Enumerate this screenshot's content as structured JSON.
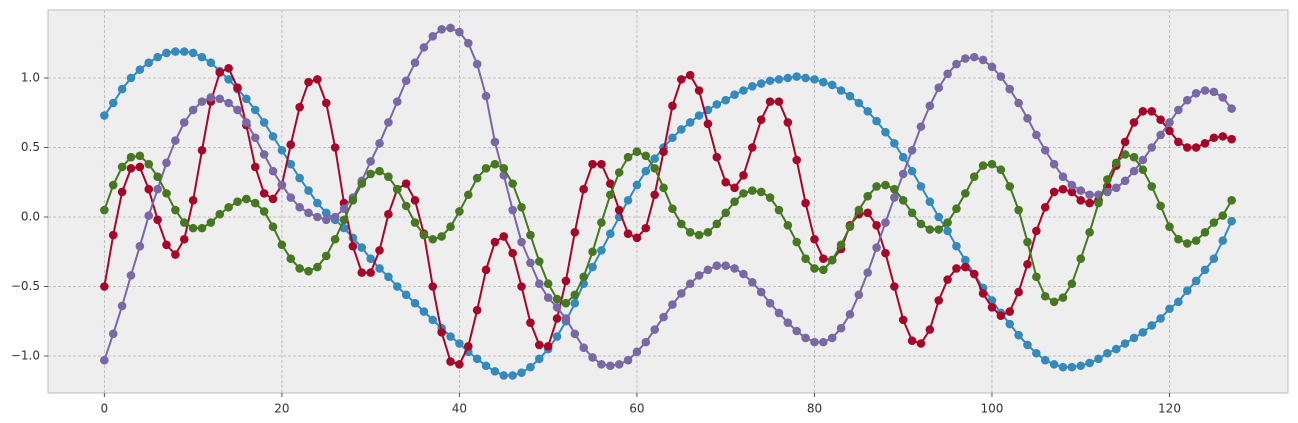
{
  "chart_data": {
    "type": "line",
    "x": [
      0,
      1,
      2,
      3,
      4,
      5,
      6,
      7,
      8,
      9,
      10,
      11,
      12,
      13,
      14,
      15,
      16,
      17,
      18,
      19,
      20,
      21,
      22,
      23,
      24,
      25,
      26,
      27,
      28,
      29,
      30,
      31,
      32,
      33,
      34,
      35,
      36,
      37,
      38,
      39,
      40,
      41,
      42,
      43,
      44,
      45,
      46,
      47,
      48,
      49,
      50,
      51,
      52,
      53,
      54,
      55,
      56,
      57,
      58,
      59,
      60,
      61,
      62,
      63,
      64,
      65,
      66,
      67,
      68,
      69,
      70,
      71,
      72,
      73,
      74,
      75,
      76,
      77,
      78,
      79,
      80,
      81,
      82,
      83,
      84,
      85,
      86,
      87,
      88,
      89,
      90,
      91,
      92,
      93,
      94,
      95,
      96,
      97,
      98,
      99,
      100,
      101,
      102,
      103,
      104,
      105,
      106,
      107,
      108,
      109,
      110,
      111,
      112,
      113,
      114,
      115,
      116,
      117,
      118,
      119,
      120,
      121,
      122,
      123,
      124,
      125,
      126,
      127
    ],
    "series": [
      {
        "color": "#348ABD",
        "values": [
          0.73,
          0.82,
          0.92,
          1.0,
          1.06,
          1.11,
          1.15,
          1.18,
          1.19,
          1.19,
          1.18,
          1.15,
          1.11,
          1.05,
          0.99,
          0.92,
          0.85,
          0.77,
          0.68,
          0.58,
          0.48,
          0.38,
          0.28,
          0.19,
          0.1,
          0.03,
          -0.02,
          -0.08,
          -0.15,
          -0.22,
          -0.3,
          -0.37,
          -0.43,
          -0.5,
          -0.56,
          -0.62,
          -0.68,
          -0.74,
          -0.8,
          -0.86,
          -0.91,
          -0.97,
          -1.02,
          -1.07,
          -1.11,
          -1.14,
          -1.14,
          -1.12,
          -1.08,
          -1.02,
          -0.95,
          -0.86,
          -0.75,
          -0.62,
          -0.48,
          -0.36,
          -0.24,
          -0.12,
          0.0,
          0.12,
          0.23,
          0.33,
          0.42,
          0.5,
          0.57,
          0.63,
          0.68,
          0.73,
          0.77,
          0.81,
          0.84,
          0.88,
          0.91,
          0.94,
          0.96,
          0.98,
          0.99,
          1.0,
          1.01,
          1.0,
          0.99,
          0.97,
          0.95,
          0.91,
          0.87,
          0.82,
          0.76,
          0.69,
          0.61,
          0.53,
          0.43,
          0.33,
          0.22,
          0.11,
          0.0,
          -0.1,
          -0.21,
          -0.31,
          -0.41,
          -0.51,
          -0.6,
          -0.69,
          -0.77,
          -0.85,
          -0.92,
          -0.98,
          -1.03,
          -1.06,
          -1.08,
          -1.08,
          -1.07,
          -1.05,
          -1.02,
          -0.98,
          -0.95,
          -0.91,
          -0.87,
          -0.83,
          -0.78,
          -0.73,
          -0.66,
          -0.61,
          -0.53,
          -0.46,
          -0.38,
          -0.3,
          -0.17,
          -0.03
        ]
      },
      {
        "color": "#A60628",
        "values": [
          -0.5,
          -0.13,
          0.18,
          0.35,
          0.36,
          0.2,
          -0.02,
          -0.2,
          -0.27,
          -0.16,
          0.12,
          0.48,
          0.83,
          1.04,
          1.07,
          0.93,
          0.66,
          0.36,
          0.17,
          0.13,
          0.23,
          0.52,
          0.79,
          0.97,
          0.99,
          0.82,
          0.5,
          0.1,
          -0.21,
          -0.4,
          -0.4,
          -0.24,
          0.02,
          0.2,
          0.24,
          0.12,
          -0.12,
          -0.5,
          -0.83,
          -1.04,
          -1.06,
          -0.93,
          -0.67,
          -0.38,
          -0.18,
          -0.14,
          -0.26,
          -0.5,
          -0.76,
          -0.92,
          -0.93,
          -0.73,
          -0.46,
          -0.11,
          0.2,
          0.38,
          0.38,
          0.24,
          0.05,
          -0.12,
          -0.15,
          -0.08,
          0.16,
          0.47,
          0.8,
          0.99,
          1.02,
          0.91,
          0.67,
          0.43,
          0.25,
          0.21,
          0.3,
          0.5,
          0.7,
          0.83,
          0.83,
          0.68,
          0.41,
          0.1,
          -0.16,
          -0.3,
          -0.31,
          -0.23,
          -0.06,
          0.02,
          0.03,
          -0.06,
          -0.26,
          -0.5,
          -0.74,
          -0.89,
          -0.91,
          -0.81,
          -0.6,
          -0.45,
          -0.37,
          -0.36,
          -0.41,
          -0.55,
          -0.65,
          -0.71,
          -0.68,
          -0.54,
          -0.34,
          -0.1,
          0.07,
          0.18,
          0.2,
          0.18,
          0.12,
          0.1,
          0.12,
          0.22,
          0.37,
          0.54,
          0.68,
          0.76,
          0.76,
          0.7,
          0.62,
          0.54,
          0.5,
          0.5,
          0.53,
          0.57,
          0.58,
          0.56
        ]
      },
      {
        "color": "#7A68A6",
        "values": [
          -1.03,
          -0.84,
          -0.64,
          -0.42,
          -0.21,
          0.01,
          0.2,
          0.39,
          0.55,
          0.68,
          0.77,
          0.83,
          0.86,
          0.85,
          0.82,
          0.77,
          0.68,
          0.57,
          0.45,
          0.33,
          0.23,
          0.14,
          0.07,
          0.03,
          0.0,
          -0.02,
          0.0,
          0.06,
          0.14,
          0.26,
          0.4,
          0.53,
          0.68,
          0.83,
          0.98,
          1.11,
          1.22,
          1.3,
          1.35,
          1.36,
          1.33,
          1.25,
          1.1,
          0.87,
          0.54,
          0.3,
          0.05,
          -0.18,
          -0.33,
          -0.48,
          -0.58,
          -0.65,
          -0.73,
          -0.84,
          -0.94,
          -1.01,
          -1.06,
          -1.07,
          -1.06,
          -1.03,
          -0.97,
          -0.9,
          -0.81,
          -0.72,
          -0.63,
          -0.55,
          -0.48,
          -0.42,
          -0.38,
          -0.35,
          -0.35,
          -0.37,
          -0.41,
          -0.47,
          -0.54,
          -0.62,
          -0.69,
          -0.76,
          -0.82,
          -0.87,
          -0.9,
          -0.9,
          -0.87,
          -0.8,
          -0.7,
          -0.56,
          -0.4,
          -0.22,
          -0.04,
          0.14,
          0.31,
          0.48,
          0.65,
          0.8,
          0.93,
          1.03,
          1.1,
          1.14,
          1.15,
          1.13,
          1.08,
          1.01,
          0.92,
          0.82,
          0.71,
          0.59,
          0.48,
          0.38,
          0.29,
          0.23,
          0.19,
          0.16,
          0.16,
          0.18,
          0.21,
          0.26,
          0.33,
          0.41,
          0.5,
          0.59,
          0.68,
          0.77,
          0.84,
          0.89,
          0.91,
          0.9,
          0.86,
          0.78
        ]
      },
      {
        "color": "#467821",
        "values": [
          0.05,
          0.23,
          0.36,
          0.43,
          0.44,
          0.38,
          0.29,
          0.17,
          0.05,
          -0.04,
          -0.08,
          -0.08,
          -0.04,
          0.02,
          0.07,
          0.11,
          0.13,
          0.1,
          0.04,
          -0.07,
          -0.2,
          -0.3,
          -0.37,
          -0.39,
          -0.36,
          -0.28,
          -0.16,
          -0.02,
          0.12,
          0.24,
          0.31,
          0.33,
          0.29,
          0.2,
          0.08,
          -0.04,
          -0.13,
          -0.16,
          -0.14,
          -0.07,
          0.04,
          0.16,
          0.28,
          0.35,
          0.38,
          0.35,
          0.24,
          0.07,
          -0.13,
          -0.32,
          -0.48,
          -0.59,
          -0.62,
          -0.56,
          -0.43,
          -0.25,
          -0.04,
          0.16,
          0.32,
          0.43,
          0.47,
          0.44,
          0.35,
          0.21,
          0.06,
          -0.05,
          -0.11,
          -0.13,
          -0.11,
          -0.05,
          0.03,
          0.11,
          0.17,
          0.19,
          0.18,
          0.14,
          0.05,
          -0.06,
          -0.18,
          -0.3,
          -0.37,
          -0.38,
          -0.31,
          -0.2,
          -0.07,
          0.05,
          0.15,
          0.22,
          0.23,
          0.2,
          0.12,
          0.03,
          -0.05,
          -0.09,
          -0.09,
          -0.04,
          0.06,
          0.17,
          0.29,
          0.37,
          0.38,
          0.34,
          0.22,
          0.05,
          -0.18,
          -0.43,
          -0.57,
          -0.61,
          -0.58,
          -0.48,
          -0.3,
          -0.11,
          0.1,
          0.27,
          0.39,
          0.45,
          0.43,
          0.34,
          0.22,
          0.08,
          -0.07,
          -0.16,
          -0.19,
          -0.17,
          -0.11,
          -0.04,
          0.01,
          0.12
        ]
      }
    ],
    "xlim": [
      -6.35,
      133.35
    ],
    "ylim": [
      -1.266,
      1.489
    ],
    "xticks": [
      0,
      20,
      40,
      60,
      80,
      100,
      120
    ],
    "yticks": [
      {
        "value": -1,
        "label": "−1.0"
      },
      {
        "value": -0.5,
        "label": "−0.5"
      },
      {
        "value": 0,
        "label": "0.0"
      },
      {
        "value": 0.5,
        "label": "0.5"
      },
      {
        "value": 1,
        "label": "1.0"
      }
    ],
    "grid": true,
    "markers": true
  }
}
